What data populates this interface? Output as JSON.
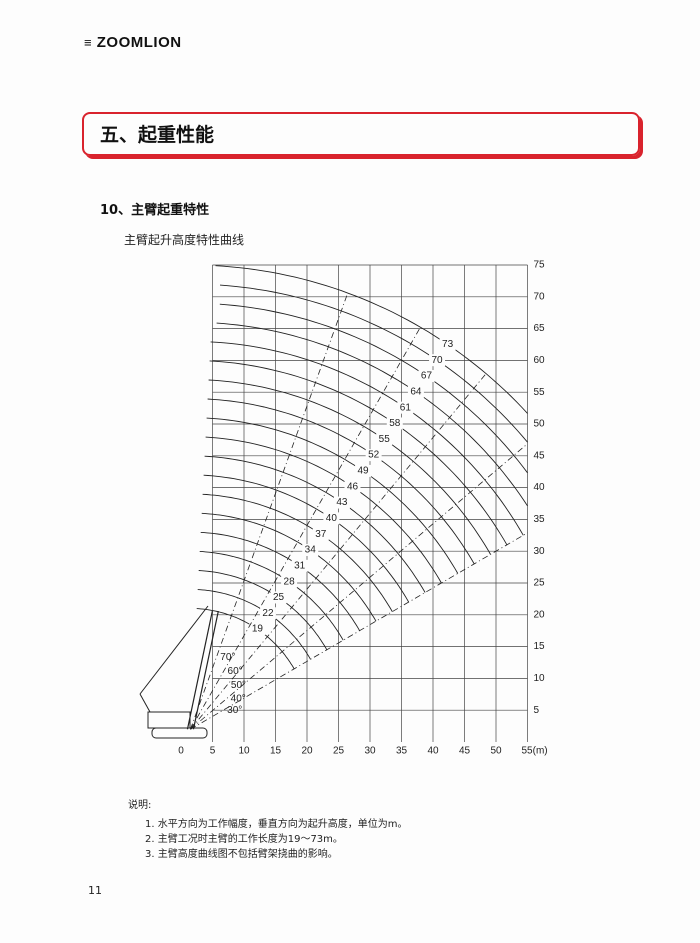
{
  "header": {
    "logo": "ZOOMLION"
  },
  "section": {
    "title": "五、起重性能"
  },
  "subsection": {
    "title": "10、主臂起重特性"
  },
  "figure": {
    "caption": "主臂起升高度特性曲线",
    "x_ticks": [
      0,
      5,
      10,
      15,
      20,
      25,
      30,
      35,
      40,
      45,
      50,
      {
        "value": 55,
        "label": "55(m)"
      }
    ],
    "y_ticks": [
      5,
      10,
      15,
      20,
      25,
      30,
      35,
      40,
      45,
      50,
      55,
      60,
      65,
      70,
      75
    ],
    "boom_lengths": [
      19,
      22,
      25,
      28,
      31,
      34,
      37,
      40,
      43,
      46,
      49,
      52,
      55,
      58,
      61,
      64,
      67,
      70,
      73
    ],
    "angles": [
      {
        "value": 30,
        "label": "30°"
      },
      {
        "value": 40,
        "label": "40°"
      },
      {
        "value": 50,
        "label": "50°"
      },
      {
        "value": 60,
        "label": "60°"
      },
      {
        "value": 70,
        "label": "70°"
      }
    ]
  },
  "notes": {
    "title": "说明:",
    "items": [
      "1. 水平方向为工作幅度，垂直方向为起升高度，单位为m。",
      "2. 主臂工况时主臂的工作长度为19～73m。",
      "3. 主臂高度曲线图不包括臂架挠曲的影响。"
    ]
  },
  "page_number": "11"
}
